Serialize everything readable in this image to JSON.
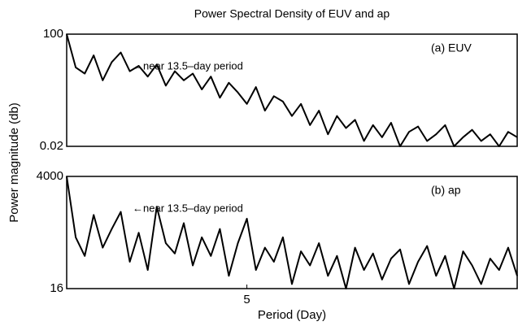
{
  "chart_data": [
    {
      "type": "line",
      "title": "Power Spectral Density of EUV and ap",
      "ylabel": "Power magnitude (db)",
      "panel_label": "(a) EUV",
      "annotation": "←near 13.5–day period",
      "log_y": true,
      "color": "#000000",
      "x": [
        1,
        1.2,
        1.4,
        1.6,
        1.8,
        2,
        2.2,
        2.4,
        2.6,
        2.8,
        3,
        3.2,
        3.4,
        3.6,
        3.8,
        4,
        4.2,
        4.4,
        4.6,
        4.8,
        5,
        5.2,
        5.4,
        5.6,
        5.8,
        6,
        6.2,
        6.4,
        6.6,
        6.8,
        7,
        7.2,
        7.4,
        7.6,
        7.8,
        8,
        8.2,
        8.4,
        8.6,
        8.8,
        9,
        9.2,
        9.4,
        9.6,
        9.8,
        10,
        10.2,
        10.4,
        10.6,
        10.8,
        11
      ],
      "values": [
        100,
        8,
        5,
        20,
        3,
        12,
        25,
        6,
        9,
        4,
        10,
        2,
        6,
        3,
        5,
        1.5,
        4,
        0.8,
        2.5,
        1.2,
        0.5,
        1.8,
        0.3,
        0.9,
        0.6,
        0.2,
        0.5,
        0.1,
        0.3,
        0.05,
        0.2,
        0.08,
        0.15,
        0.03,
        0.1,
        0.04,
        0.12,
        0.02,
        0.06,
        0.09,
        0.03,
        0.05,
        0.1,
        0.02,
        0.04,
        0.07,
        0.03,
        0.05,
        0.02,
        0.06,
        0.04
      ],
      "xlim": [
        1,
        11
      ],
      "ylim": [
        0.02,
        100
      ],
      "yticks": [
        0.02,
        100
      ]
    },
    {
      "type": "line",
      "xlabel": "Period (Day)",
      "panel_label": "(b) ap",
      "annotation": "←near 13.5–day period",
      "log_y": true,
      "color": "#000000",
      "x": [
        1,
        1.2,
        1.4,
        1.6,
        1.8,
        2,
        2.2,
        2.4,
        2.6,
        2.8,
        3,
        3.2,
        3.4,
        3.6,
        3.8,
        4,
        4.2,
        4.4,
        4.6,
        4.8,
        5,
        5.2,
        5.4,
        5.6,
        5.8,
        6,
        6.2,
        6.4,
        6.6,
        6.8,
        7,
        7.2,
        7.4,
        7.6,
        7.8,
        8,
        8.2,
        8.4,
        8.6,
        8.8,
        9,
        9.2,
        9.4,
        9.6,
        9.8,
        10,
        10.2,
        10.4,
        10.6,
        10.8,
        11
      ],
      "values": [
        4000,
        200,
        80,
        600,
        120,
        300,
        700,
        60,
        250,
        40,
        900,
        150,
        90,
        400,
        50,
        200,
        80,
        300,
        30,
        150,
        500,
        40,
        120,
        60,
        200,
        20,
        100,
        50,
        150,
        30,
        80,
        16,
        120,
        40,
        90,
        25,
        70,
        110,
        20,
        60,
        130,
        30,
        80,
        16,
        100,
        50,
        20,
        70,
        40,
        120,
        30
      ],
      "xlim": [
        1,
        11
      ],
      "ylim": [
        16,
        4000
      ],
      "yticks": [
        16,
        4000
      ],
      "xticks": [
        5
      ]
    }
  ]
}
